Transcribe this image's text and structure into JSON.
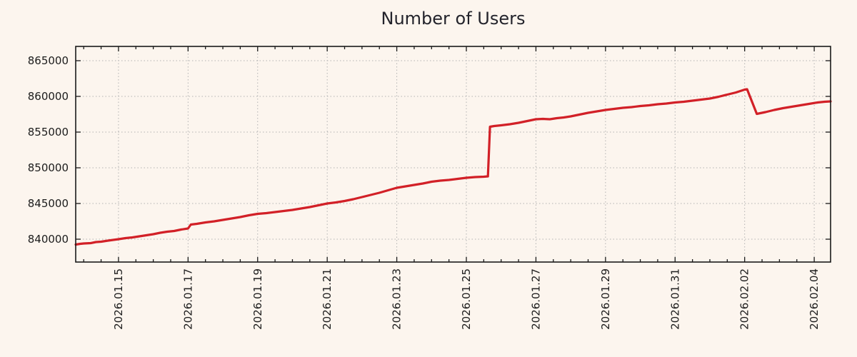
{
  "page": {
    "background": "#fcf5ee"
  },
  "chart_data": {
    "type": "line",
    "title": "Number of Users",
    "xlabel": "",
    "ylabel": "",
    "legend_position": "none",
    "grid": true,
    "colors": {
      "line": "#d22027",
      "grid": "#b2b2b2",
      "axis": "#1a1a1a",
      "text": "#1c1c1c"
    },
    "xlim": [
      13.77,
      35.47
    ],
    "ylim": [
      836800,
      867000
    ],
    "x_minor_tick_step_days": 0.5,
    "x_ticks": [
      {
        "day": 15,
        "label": "2026.01.15"
      },
      {
        "day": 17,
        "label": "2026.01.17"
      },
      {
        "day": 19,
        "label": "2026.01.19"
      },
      {
        "day": 21,
        "label": "2026.01.21"
      },
      {
        "day": 23,
        "label": "2026.01.23"
      },
      {
        "day": 25,
        "label": "2026.01.25"
      },
      {
        "day": 27,
        "label": "2026.01.27"
      },
      {
        "day": 29,
        "label": "2026.01.29"
      },
      {
        "day": 31,
        "label": "2026.01.31"
      },
      {
        "day": 33,
        "label": "2026.02.02"
      },
      {
        "day": 35,
        "label": "2026.02.04"
      }
    ],
    "y_ticks": [
      {
        "value": 840000,
        "label": "840000"
      },
      {
        "value": 845000,
        "label": "845000"
      },
      {
        "value": 850000,
        "label": "850000"
      },
      {
        "value": 855000,
        "label": "855000"
      },
      {
        "value": 860000,
        "label": "860000"
      },
      {
        "value": 865000,
        "label": "865000"
      }
    ],
    "series": [
      {
        "name": "Number of Users",
        "color": "#d22027",
        "points": [
          [
            13.77,
            839250
          ],
          [
            13.9,
            839350
          ],
          [
            14.0,
            839400
          ],
          [
            14.2,
            839450
          ],
          [
            14.35,
            839600
          ],
          [
            14.5,
            839650
          ],
          [
            14.7,
            839800
          ],
          [
            14.85,
            839900
          ],
          [
            15.0,
            840000
          ],
          [
            15.2,
            840150
          ],
          [
            15.4,
            840250
          ],
          [
            15.6,
            840400
          ],
          [
            15.8,
            840550
          ],
          [
            16.0,
            840700
          ],
          [
            16.2,
            840900
          ],
          [
            16.4,
            841050
          ],
          [
            16.6,
            841150
          ],
          [
            16.8,
            841350
          ],
          [
            17.0,
            841500
          ],
          [
            17.08,
            842050
          ],
          [
            17.25,
            842150
          ],
          [
            17.5,
            842350
          ],
          [
            17.75,
            842500
          ],
          [
            18.0,
            842700
          ],
          [
            18.25,
            842900
          ],
          [
            18.5,
            843100
          ],
          [
            18.75,
            843350
          ],
          [
            19.0,
            843550
          ],
          [
            19.25,
            843650
          ],
          [
            19.5,
            843800
          ],
          [
            19.75,
            843950
          ],
          [
            20.0,
            844100
          ],
          [
            20.25,
            844300
          ],
          [
            20.5,
            844500
          ],
          [
            20.75,
            844750
          ],
          [
            21.0,
            845000
          ],
          [
            21.25,
            845150
          ],
          [
            21.5,
            845350
          ],
          [
            21.75,
            845600
          ],
          [
            22.0,
            845900
          ],
          [
            22.25,
            846200
          ],
          [
            22.5,
            846500
          ],
          [
            22.75,
            846850
          ],
          [
            23.0,
            847200
          ],
          [
            23.25,
            847400
          ],
          [
            23.5,
            847600
          ],
          [
            23.75,
            847800
          ],
          [
            24.0,
            848050
          ],
          [
            24.25,
            848200
          ],
          [
            24.5,
            848300
          ],
          [
            24.75,
            848450
          ],
          [
            25.0,
            848600
          ],
          [
            25.25,
            848700
          ],
          [
            25.5,
            848750
          ],
          [
            25.62,
            848800
          ],
          [
            25.68,
            855750
          ],
          [
            25.8,
            855850
          ],
          [
            26.0,
            855950
          ],
          [
            26.25,
            856100
          ],
          [
            26.5,
            856300
          ],
          [
            26.75,
            856550
          ],
          [
            27.0,
            856800
          ],
          [
            27.2,
            856850
          ],
          [
            27.4,
            856800
          ],
          [
            27.6,
            856950
          ],
          [
            27.8,
            857050
          ],
          [
            28.0,
            857200
          ],
          [
            28.25,
            857450
          ],
          [
            28.5,
            857700
          ],
          [
            28.75,
            857900
          ],
          [
            29.0,
            858100
          ],
          [
            29.25,
            858250
          ],
          [
            29.5,
            858400
          ],
          [
            29.75,
            858500
          ],
          [
            30.0,
            858650
          ],
          [
            30.25,
            858750
          ],
          [
            30.5,
            858900
          ],
          [
            30.75,
            859000
          ],
          [
            31.0,
            859150
          ],
          [
            31.25,
            859250
          ],
          [
            31.5,
            859400
          ],
          [
            31.75,
            859550
          ],
          [
            32.0,
            859700
          ],
          [
            32.25,
            859950
          ],
          [
            32.5,
            860250
          ],
          [
            32.75,
            860550
          ],
          [
            33.0,
            860950
          ],
          [
            33.07,
            861000
          ],
          [
            33.35,
            857550
          ],
          [
            33.6,
            857800
          ],
          [
            33.85,
            858100
          ],
          [
            34.1,
            858350
          ],
          [
            34.35,
            858550
          ],
          [
            34.6,
            858750
          ],
          [
            34.85,
            858950
          ],
          [
            35.1,
            859150
          ],
          [
            35.3,
            859250
          ],
          [
            35.47,
            859300
          ]
        ]
      }
    ]
  }
}
